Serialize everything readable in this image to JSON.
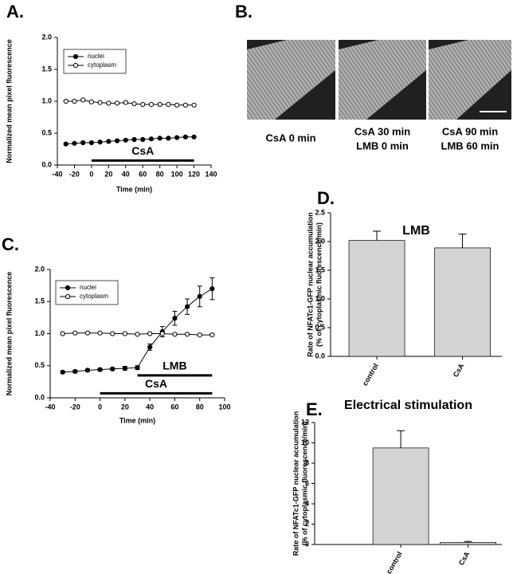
{
  "chart_data": [
    {
      "type": "line",
      "panel": "A.",
      "xlabel": "Time (min)",
      "ylabel": "Normalized mean pixel fluorescence",
      "x": [
        -30,
        -20,
        -10,
        0,
        10,
        20,
        30,
        40,
        50,
        60,
        70,
        80,
        90,
        100,
        110,
        120
      ],
      "series": [
        {
          "name": "nuclei",
          "color": "#000000",
          "marker_fill": "#000000",
          "values": [
            0.33,
            0.34,
            0.35,
            0.35,
            0.36,
            0.37,
            0.38,
            0.39,
            0.4,
            0.4,
            0.41,
            0.42,
            0.42,
            0.43,
            0.44,
            0.44
          ]
        },
        {
          "name": "cytoplasm",
          "color": "#000000",
          "marker_fill": "#ffffff",
          "values": [
            1.0,
            1.0,
            1.02,
            0.99,
            0.98,
            0.97,
            0.97,
            0.98,
            0.96,
            0.95,
            0.95,
            0.95,
            0.95,
            0.94,
            0.94,
            0.94
          ]
        }
      ],
      "annotations": [
        {
          "text": "CsA",
          "x": [
            0,
            120
          ],
          "y": 0.07
        }
      ],
      "xlim": [
        -40,
        140
      ],
      "xticks": [
        -40,
        -20,
        0,
        20,
        40,
        60,
        80,
        100,
        120,
        140
      ],
      "ylim": [
        0,
        2
      ],
      "yticks": [
        {
          "value": 0,
          "label": "0.0"
        },
        {
          "value": 0.5,
          "label": "0.5"
        },
        {
          "value": 1,
          "label": "1.0"
        },
        {
          "value": 1.5,
          "label": "1.5"
        },
        {
          "value": 2,
          "label": "2.0"
        }
      ],
      "legend": "upper left"
    },
    {
      "type": "line",
      "panel": "C.",
      "xlabel": "Time (min)",
      "ylabel": "Normalized mean pixel fluorescence",
      "x": [
        -30,
        -20,
        -10,
        0,
        10,
        20,
        30,
        40,
        50,
        60,
        70,
        80,
        90
      ],
      "series": [
        {
          "name": "nuclei",
          "color": "#000000",
          "marker_fill": "#000000",
          "values": [
            0.4,
            0.41,
            0.43,
            0.44,
            0.45,
            0.46,
            0.47,
            0.79,
            1.03,
            1.24,
            1.42,
            1.58,
            1.7
          ],
          "errors": [
            0.02,
            0.02,
            0.02,
            0.02,
            0.02,
            0.03,
            0.03,
            0.05,
            0.08,
            0.11,
            0.12,
            0.16,
            0.17
          ]
        },
        {
          "name": "cytoplasm",
          "color": "#000000",
          "marker_fill": "#ffffff",
          "values": [
            1.0,
            1.01,
            1.01,
            1.01,
            1.0,
            1.0,
            0.99,
            1.0,
            1.0,
            0.99,
            0.99,
            0.98,
            0.98
          ]
        }
      ],
      "annotations": [
        {
          "text": "LMB",
          "x": [
            30,
            90
          ],
          "y": 0.35
        },
        {
          "text": "CsA",
          "x": [
            0,
            90
          ],
          "y": 0.07
        }
      ],
      "xlim": [
        -40,
        100
      ],
      "xticks": [
        -40,
        -20,
        0,
        20,
        40,
        60,
        80,
        100
      ],
      "ylim": [
        0,
        2
      ],
      "yticks": [
        {
          "value": 0,
          "label": "0.0"
        },
        {
          "value": 0.5,
          "label": "0.5"
        },
        {
          "value": 1,
          "label": "1.0"
        },
        {
          "value": 1.5,
          "label": "1.5"
        },
        {
          "value": 2,
          "label": "2.0"
        }
      ],
      "legend": "upper left"
    },
    {
      "type": "bar",
      "panel": "D.",
      "title": "LMB",
      "ylabel": [
        "Rate of NFATc1-GFP nuclear accumulation",
        "(% of cytoplasmic fluorescence/min)"
      ],
      "categories": [
        "control",
        "CsA"
      ],
      "values": [
        2.02,
        1.89
      ],
      "errors": [
        0.16,
        0.24
      ],
      "color": "#d3d3d3",
      "ylim": [
        0,
        2.5
      ],
      "yticks": [
        {
          "value": 0,
          "label": "0.0"
        },
        {
          "value": 0.5,
          "label": "0.5"
        },
        {
          "value": 1,
          "label": "1.0"
        },
        {
          "value": 1.5,
          "label": "1.5"
        },
        {
          "value": 2,
          "label": "2.0"
        },
        {
          "value": 2.5,
          "label": "2.5"
        }
      ]
    },
    {
      "type": "bar",
      "panel": "E.",
      "title": "Electrical stimulation",
      "ylabel": [
        "Rate of NFATc1-GFP nuclear accumulation",
        "(% of cytoplasmic fluorescence/min)"
      ],
      "categories": [
        "control",
        "CsA"
      ],
      "values": [
        9.5,
        0.2
      ],
      "errors": [
        1.7,
        0.1
      ],
      "color": "#d3d3d3",
      "ylim": [
        0,
        12
      ],
      "yticks": [
        0,
        2,
        4,
        6,
        8,
        10,
        12
      ]
    }
  ],
  "images": {
    "panel": "B.",
    "captions": [
      [
        "CsA 0 min"
      ],
      [
        "CsA 30 min",
        "LMB 0 min"
      ],
      [
        "CsA 90 min",
        "LMB 60 min"
      ]
    ]
  }
}
